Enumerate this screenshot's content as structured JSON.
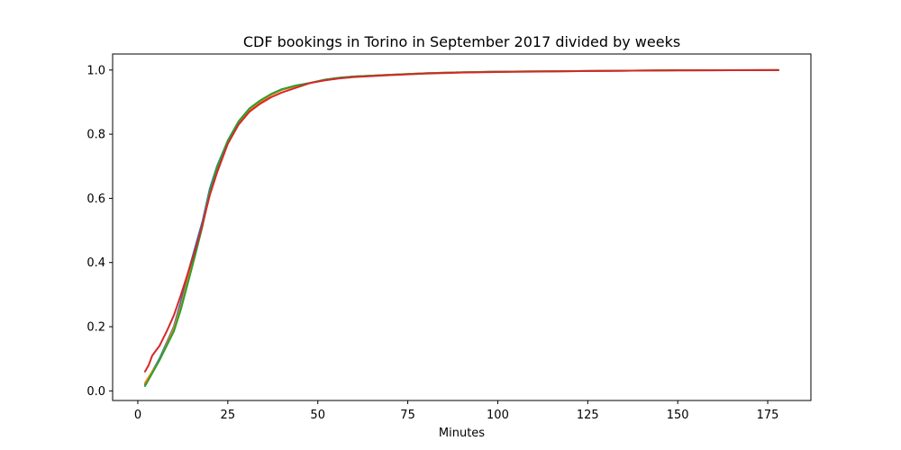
{
  "chart_data": {
    "type": "line",
    "title": "CDF bookings in Torino in September 2017 divided by weeks",
    "xlabel": "Minutes",
    "ylabel": "",
    "xlim": [
      -7,
      187
    ],
    "ylim": [
      -0.03,
      1.05
    ],
    "xticks": [
      0,
      25,
      50,
      75,
      100,
      125,
      150,
      175
    ],
    "yticks": [
      0.0,
      0.2,
      0.4,
      0.6,
      0.8,
      1.0
    ],
    "grid": false,
    "series": [
      {
        "color": "#1f77b4",
        "x": [
          2,
          4,
          6,
          8,
          10,
          12,
          14,
          16,
          18,
          20,
          22,
          25,
          28,
          31,
          34,
          37,
          40,
          44,
          48,
          52,
          56,
          60,
          70,
          80,
          90,
          100,
          125,
          150,
          178
        ],
        "y": [
          0.02,
          0.06,
          0.1,
          0.15,
          0.2,
          0.28,
          0.37,
          0.45,
          0.53,
          0.63,
          0.7,
          0.78,
          0.84,
          0.88,
          0.905,
          0.925,
          0.94,
          0.952,
          0.96,
          0.97,
          0.976,
          0.98,
          0.985,
          0.99,
          0.993,
          0.995,
          0.997,
          0.999,
          1.0
        ]
      },
      {
        "color": "#ff7f0e",
        "x": [
          2,
          4,
          6,
          8,
          10,
          12,
          14,
          16,
          18,
          20,
          22,
          25,
          28,
          31,
          34,
          37,
          40,
          44,
          48,
          52,
          56,
          60,
          70,
          80,
          90,
          100,
          125,
          150,
          178
        ],
        "y": [
          0.025,
          0.06,
          0.095,
          0.145,
          0.195,
          0.265,
          0.35,
          0.43,
          0.52,
          0.62,
          0.695,
          0.775,
          0.835,
          0.875,
          0.9,
          0.922,
          0.938,
          0.95,
          0.96,
          0.969,
          0.975,
          0.98,
          0.985,
          0.99,
          0.993,
          0.995,
          0.997,
          0.999,
          1.0
        ]
      },
      {
        "color": "#2ca02c",
        "x": [
          2,
          4,
          6,
          8,
          10,
          12,
          14,
          16,
          18,
          20,
          22,
          25,
          28,
          31,
          34,
          37,
          40,
          44,
          48,
          52,
          56,
          60,
          70,
          80,
          90,
          100,
          125,
          150,
          178
        ],
        "y": [
          0.015,
          0.055,
          0.095,
          0.14,
          0.185,
          0.255,
          0.34,
          0.425,
          0.515,
          0.62,
          0.695,
          0.78,
          0.84,
          0.88,
          0.905,
          0.925,
          0.94,
          0.952,
          0.96,
          0.97,
          0.976,
          0.98,
          0.985,
          0.99,
          0.993,
          0.995,
          0.997,
          0.999,
          1.0
        ]
      },
      {
        "color": "#d62728",
        "x": [
          2,
          3,
          4,
          6,
          8,
          10,
          12,
          14,
          16,
          18,
          20,
          22,
          25,
          28,
          31,
          34,
          37,
          40,
          44,
          48,
          52,
          56,
          60,
          70,
          80,
          90,
          100,
          125,
          150,
          178
        ],
        "y": [
          0.06,
          0.08,
          0.11,
          0.14,
          0.185,
          0.235,
          0.3,
          0.37,
          0.44,
          0.52,
          0.61,
          0.68,
          0.77,
          0.83,
          0.87,
          0.895,
          0.915,
          0.93,
          0.945,
          0.96,
          0.968,
          0.974,
          0.978,
          0.984,
          0.989,
          0.992,
          0.994,
          0.997,
          0.999,
          1.0
        ]
      }
    ]
  }
}
